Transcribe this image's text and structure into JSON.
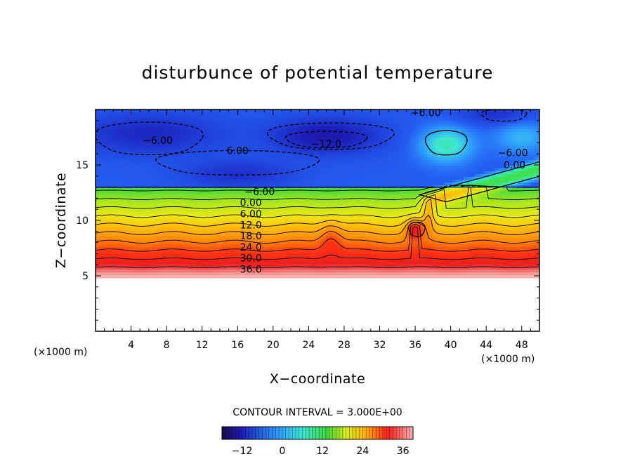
{
  "chart_data": {
    "type": "heatmap",
    "title": "disturbunce of potential temperature",
    "xlabel": "X−coordinate",
    "ylabel": "Z−coordinate",
    "x_unit": "(×1000 m)",
    "x_unit_right": "(×1000 m)",
    "xlim": [
      0,
      50
    ],
    "ylim": [
      0,
      20
    ],
    "x_ticks": [
      4,
      8,
      12,
      16,
      20,
      24,
      28,
      32,
      36,
      40,
      44,
      48
    ],
    "y_ticks": [
      5,
      10,
      15
    ],
    "contour_interval_text": "CONTOUR INTERVAL = 3.000E+00",
    "colorbar": {
      "min": -18,
      "max": 39,
      "ticks": [
        -12,
        0,
        12,
        24,
        36
      ],
      "tick_labels": [
        "−12",
        "0",
        "12",
        "24",
        "36"
      ]
    },
    "field": {
      "lower_boundary_z": 5,
      "base_value_at_z5": 39,
      "lapse_per_km": -3.9,
      "features": [
        {
          "type": "ridge",
          "x": 26.5,
          "z": 8.5,
          "amplitude_km": 1.2
        },
        {
          "type": "wave",
          "x": 37,
          "z": 10.5,
          "amplitude_km": 2.5
        },
        {
          "type": "tongue",
          "x_start": 36,
          "x_end": 50,
          "z_start": 11.5,
          "z_end": 14.5
        }
      ]
    },
    "contour_labels": [
      {
        "text": "36.0",
        "x": 17.5,
        "z": 5.6
      },
      {
        "text": "30.0",
        "x": 17.5,
        "z": 6.6
      },
      {
        "text": "24.0",
        "x": 17.5,
        "z": 7.6
      },
      {
        "text": "18.0",
        "x": 17.5,
        "z": 8.6
      },
      {
        "text": "12.0",
        "x": 17.5,
        "z": 9.6
      },
      {
        "text": "6.00",
        "x": 17.5,
        "z": 10.6
      },
      {
        "text": "0.00",
        "x": 17.5,
        "z": 11.6
      },
      {
        "text": "−6.00",
        "x": 18.5,
        "z": 12.6
      },
      {
        "text": "−6.00",
        "x": 7.0,
        "z": 17.2
      },
      {
        "text": "6.00",
        "x": 16.0,
        "z": 16.3
      },
      {
        "text": "−12.0",
        "x": 26.0,
        "z": 16.9
      },
      {
        "text": "−6.00",
        "x": 37.2,
        "z": 19.7
      },
      {
        "text": "−6.00",
        "x": 47.0,
        "z": 16.1
      },
      {
        "text": "0.00",
        "x": 47.2,
        "z": 15.0
      }
    ]
  }
}
